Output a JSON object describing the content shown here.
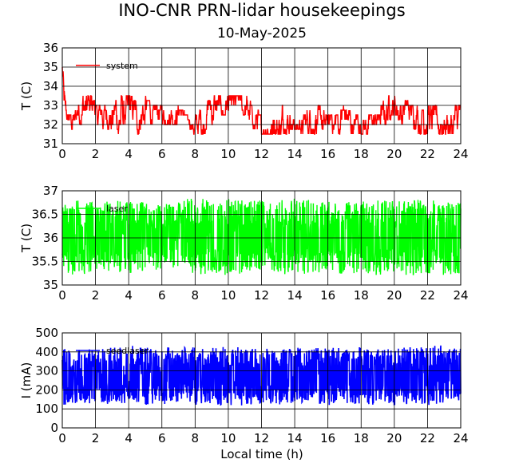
{
  "title": "INO-CNR PRN-lidar housekeepings",
  "subtitle": "10-May-2025",
  "xlabel": "Local time (h)",
  "chart_data": [
    {
      "type": "line",
      "ylabel": "T (C)",
      "xlim": [
        0,
        24
      ],
      "ylim": [
        31,
        36
      ],
      "xticks": [
        0,
        2,
        4,
        6,
        8,
        10,
        12,
        14,
        16,
        18,
        20,
        22,
        24
      ],
      "yticks": [
        31,
        32,
        33,
        34,
        35,
        36
      ],
      "grid": true,
      "legend_position": "top-left",
      "series": [
        {
          "name": "system",
          "color": "#ff0000",
          "x": [
            0,
            0.05,
            0.1,
            0.3,
            0.7,
            0.9,
            1.2,
            1.5,
            1.8,
            2.1,
            2.5,
            3.0,
            3.3,
            3.7,
            4.2,
            4.6,
            5.0,
            5.5,
            6.0,
            6.5,
            7.0,
            7.5,
            8.0,
            8.5,
            9.0,
            9.5,
            10.0,
            10.5,
            11.0,
            11.5,
            12.0,
            12.5,
            13.0,
            13.5,
            14.0,
            14.5,
            15.0,
            15.5,
            16.0,
            16.5,
            17.0,
            17.5,
            18.0,
            18.5,
            19.0,
            19.5,
            20.0,
            20.5,
            21.0,
            21.5,
            22.0,
            22.5,
            23.0,
            23.5,
            24.0
          ],
          "y_low": [
            33.0,
            32.0,
            31.5,
            31.5,
            31.5,
            32.0,
            32.0,
            32.0,
            32.0,
            32.0,
            31.8,
            31.5,
            31.5,
            32.0,
            32.0,
            31.5,
            32.0,
            32.0,
            32.0,
            32.0,
            32.0,
            32.0,
            31.5,
            31.5,
            32.0,
            32.5,
            32.5,
            32.5,
            32.5,
            31.8,
            31.5,
            31.5,
            31.5,
            31.5,
            31.8,
            31.5,
            31.5,
            31.5,
            31.5,
            31.5,
            31.5,
            31.5,
            31.5,
            31.5,
            31.5,
            32.0,
            32.5,
            32.0,
            32.0,
            31.5,
            31.5,
            31.5,
            31.5,
            31.5,
            31.5
          ],
          "y_high": [
            36.0,
            35.0,
            34.0,
            32.5,
            32.5,
            33.0,
            33.5,
            33.5,
            33.5,
            33.0,
            33.0,
            33.0,
            33.5,
            33.5,
            33.5,
            33.0,
            33.5,
            33.0,
            33.0,
            33.0,
            33.0,
            32.5,
            32.5,
            33.0,
            33.5,
            33.5,
            33.5,
            33.5,
            33.5,
            33.0,
            32.5,
            32.5,
            33.0,
            33.0,
            32.5,
            32.5,
            33.0,
            33.0,
            32.5,
            32.5,
            33.0,
            32.5,
            32.5,
            32.5,
            32.5,
            33.5,
            33.5,
            33.5,
            33.0,
            33.0,
            33.0,
            33.0,
            32.5,
            33.0,
            33.0
          ]
        }
      ]
    },
    {
      "type": "line",
      "ylabel": "T (C)",
      "xlim": [
        0,
        24
      ],
      "ylim": [
        35,
        37
      ],
      "xticks": [
        0,
        2,
        4,
        6,
        8,
        10,
        12,
        14,
        16,
        18,
        20,
        22,
        24
      ],
      "yticks": [
        35,
        35.5,
        36,
        36.5,
        37
      ],
      "yticklabels": [
        "35",
        "35.5",
        "36",
        "36.5",
        "37"
      ],
      "grid": true,
      "legend_position": "top-left",
      "series": [
        {
          "name": "laser",
          "color": "#00ff00",
          "x": [
            0,
            1,
            2,
            3,
            4,
            5,
            6,
            7,
            8,
            9,
            10,
            11,
            12,
            13,
            14,
            15,
            16,
            17,
            18,
            19,
            20,
            21,
            22,
            23,
            24
          ],
          "y_low": [
            35.25,
            35.2,
            35.3,
            35.25,
            35.2,
            35.25,
            35.3,
            35.3,
            35.2,
            35.25,
            35.2,
            35.25,
            35.3,
            35.25,
            35.2,
            35.25,
            35.2,
            35.25,
            35.25,
            35.2,
            35.25,
            35.2,
            35.25,
            35.2,
            35.25
          ],
          "y_high": [
            36.75,
            36.8,
            36.75,
            36.8,
            36.8,
            36.75,
            36.7,
            36.8,
            36.85,
            36.8,
            36.85,
            36.8,
            36.8,
            36.8,
            36.85,
            36.8,
            36.8,
            36.75,
            36.8,
            36.8,
            36.8,
            36.8,
            36.85,
            36.8,
            36.75
          ]
        }
      ]
    },
    {
      "type": "line",
      "ylabel": "I (mA)",
      "xlim": [
        0,
        24
      ],
      "ylim": [
        0,
        500
      ],
      "xticks": [
        0,
        2,
        4,
        6,
        8,
        10,
        12,
        14,
        16,
        18,
        20,
        22,
        24
      ],
      "yticks": [
        0,
        100,
        200,
        300,
        400,
        500
      ],
      "grid": true,
      "legend_position": "top-left",
      "series": [
        {
          "name": "seedlaser",
          "color": "#0000ff",
          "x": [
            0,
            1,
            2,
            3,
            4,
            5,
            6,
            7,
            8,
            9,
            10,
            11,
            12,
            13,
            14,
            15,
            16,
            17,
            18,
            19,
            20,
            21,
            22,
            23,
            24
          ],
          "y_low": [
            120,
            130,
            125,
            120,
            130,
            120,
            125,
            130,
            120,
            125,
            110,
            120,
            125,
            120,
            130,
            125,
            120,
            130,
            125,
            120,
            115,
            125,
            120,
            130,
            140
          ],
          "y_high": [
            420,
            415,
            420,
            425,
            435,
            425,
            420,
            430,
            425,
            420,
            430,
            425,
            420,
            430,
            425,
            420,
            425,
            420,
            425,
            425,
            420,
            425,
            430,
            435,
            420
          ]
        }
      ]
    }
  ]
}
